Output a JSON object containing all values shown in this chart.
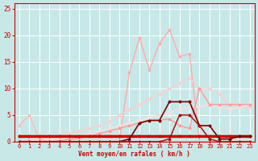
{
  "bg_color": "#c8e8e8",
  "grid_color": "#ffffff",
  "xlabel": "Vent moyen/en rafales ( km/h )",
  "xlabel_color": "#cc0000",
  "tick_color": "#cc0000",
  "xlim": [
    -0.5,
    23.5
  ],
  "ylim": [
    0,
    26
  ],
  "yticks": [
    0,
    5,
    10,
    15,
    20,
    25
  ],
  "xticks": [
    0,
    1,
    2,
    3,
    4,
    5,
    6,
    7,
    8,
    9,
    10,
    11,
    12,
    13,
    14,
    15,
    16,
    17,
    18,
    19,
    20,
    21,
    22,
    23
  ],
  "lines": [
    {
      "x": [
        0,
        1,
        2,
        3,
        4,
        5,
        6,
        7,
        8,
        9,
        10,
        11,
        12,
        13,
        14,
        15,
        16,
        17,
        18,
        19,
        20,
        21,
        22,
        23
      ],
      "y": [
        0,
        0,
        0,
        0,
        0,
        0,
        0,
        0,
        0,
        0,
        0,
        13,
        19.5,
        13.5,
        18.5,
        21,
        16,
        16.5,
        0,
        0,
        0,
        0,
        0,
        0
      ],
      "color": "#ffaaaa",
      "lw": 1.0,
      "marker": "D",
      "ms": 1.5
    },
    {
      "x": [
        0,
        1,
        2,
        3,
        4,
        5,
        6,
        7,
        8,
        9,
        10,
        11,
        12,
        13,
        14,
        15,
        16,
        17,
        18,
        19,
        20,
        21,
        22,
        23
      ],
      "y": [
        0,
        0.3,
        0.6,
        0.9,
        1.2,
        1.5,
        2,
        2.5,
        3,
        3.8,
        5,
        6,
        7,
        8,
        9,
        10,
        11,
        12,
        10,
        10,
        9,
        7,
        6.5,
        6.5
      ],
      "color": "#ffcccc",
      "lw": 1.0,
      "marker": "D",
      "ms": 1.5
    },
    {
      "x": [
        0,
        1,
        2,
        3,
        4,
        5,
        6,
        7,
        8,
        9,
        10,
        11,
        12,
        13,
        14,
        15,
        16,
        17,
        18,
        19,
        20,
        21,
        22,
        23
      ],
      "y": [
        0,
        0,
        0.2,
        0.4,
        0.6,
        0.8,
        1.0,
        1.5,
        2,
        2.5,
        3,
        3.5,
        4,
        4.5,
        5,
        5.5,
        6,
        6.5,
        6.5,
        7,
        6.5,
        6,
        6.5,
        7
      ],
      "color": "#ffdddd",
      "lw": 1.0,
      "marker": "D",
      "ms": 1.5
    },
    {
      "x": [
        0,
        1,
        2,
        3,
        4,
        5,
        6,
        7,
        8,
        9,
        10,
        11,
        12,
        13,
        14,
        15,
        16,
        17,
        18,
        19,
        20,
        21,
        22,
        23
      ],
      "y": [
        3,
        5,
        0.5,
        0,
        0,
        0,
        0,
        0,
        0,
        0,
        0,
        0,
        0,
        0,
        0,
        0,
        0,
        0,
        0,
        0,
        0,
        0,
        0,
        0
      ],
      "color": "#ffbbbb",
      "lw": 1.0,
      "marker": "D",
      "ms": 1.5
    },
    {
      "x": [
        0,
        1,
        2,
        3,
        4,
        5,
        6,
        7,
        8,
        9,
        10,
        11,
        12,
        13,
        14,
        15,
        16,
        17,
        18,
        19,
        20,
        21,
        22,
        23
      ],
      "y": [
        0,
        0,
        0,
        0,
        0.2,
        0.4,
        0.7,
        1.0,
        1.5,
        2,
        2.5,
        3,
        3.5,
        4,
        4,
        4.3,
        3,
        2.5,
        10,
        7,
        7,
        7,
        7,
        7
      ],
      "color": "#ff9999",
      "lw": 1.0,
      "marker": "D",
      "ms": 1.5
    },
    {
      "x": [
        0,
        1,
        2,
        3,
        4,
        5,
        6,
        7,
        8,
        9,
        10,
        11,
        12,
        13,
        14,
        15,
        16,
        17,
        18,
        19,
        20,
        21,
        22,
        23
      ],
      "y": [
        1,
        1,
        1,
        1,
        1,
        1,
        1,
        1,
        1,
        1,
        1,
        1,
        1,
        1,
        1,
        1,
        1,
        1,
        1,
        1,
        1,
        1,
        1,
        1
      ],
      "color": "#cc0000",
      "lw": 2.5,
      "marker": "D",
      "ms": 1.5
    },
    {
      "x": [
        0,
        1,
        2,
        3,
        4,
        5,
        6,
        7,
        8,
        9,
        10,
        11,
        12,
        13,
        14,
        15,
        16,
        17,
        18,
        19,
        20,
        21,
        22,
        23
      ],
      "y": [
        0,
        0,
        0,
        0,
        0,
        0,
        0,
        0,
        0,
        0,
        0,
        0.5,
        3.5,
        4,
        4,
        7.5,
        7.5,
        7.5,
        3,
        3,
        0.5,
        0.5,
        1,
        1
      ],
      "color": "#770000",
      "lw": 1.2,
      "marker": "D",
      "ms": 1.5
    },
    {
      "x": [
        0,
        1,
        2,
        3,
        4,
        5,
        6,
        7,
        8,
        9,
        10,
        11,
        12,
        13,
        14,
        15,
        16,
        17,
        18,
        19,
        20,
        21,
        22,
        23
      ],
      "y": [
        0,
        0,
        0,
        0,
        0,
        0,
        0,
        0,
        0,
        0,
        0,
        0,
        0,
        0,
        0,
        0.5,
        5,
        5,
        3,
        0.5,
        0,
        0,
        0,
        0
      ],
      "color": "#aa0000",
      "lw": 1.0,
      "marker": "D",
      "ms": 1.5
    }
  ]
}
